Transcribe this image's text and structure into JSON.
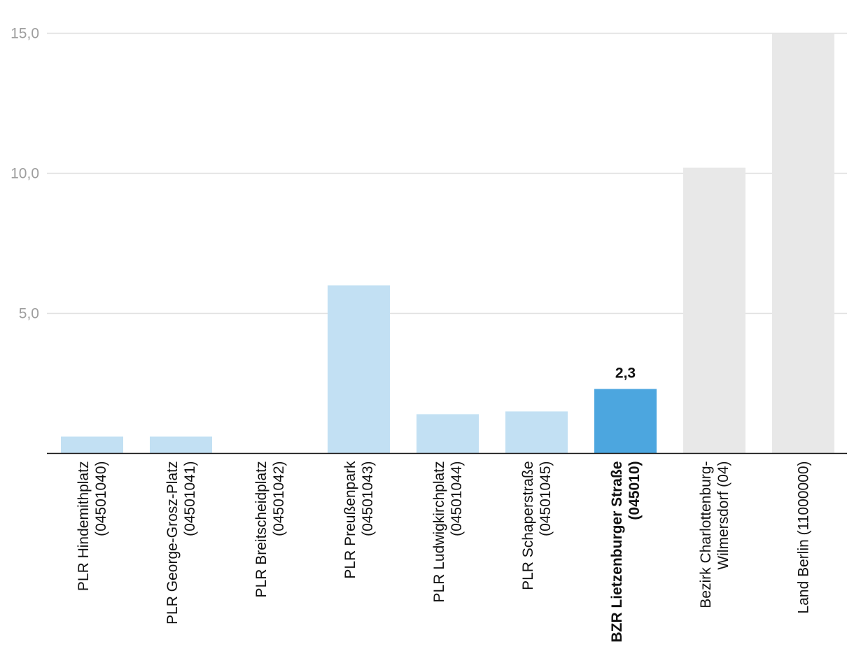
{
  "chart_data": {
    "type": "bar",
    "categories": [
      [
        "PLR Hindemithplatz",
        "(04501040)"
      ],
      [
        "PLR George-Grosz-Platz",
        "(04501041)"
      ],
      [
        "PLR Breitscheidplatz",
        "(04501042)"
      ],
      [
        "PLR Preußenpark",
        "(04501043)"
      ],
      [
        "PLR Ludwigkirchplatz",
        "(04501044)"
      ],
      [
        "PLR Schaperstraße",
        "(04501045)"
      ],
      [
        "BZR Lietzenburger Straße",
        "(045010)"
      ],
      [
        "Bezirk Charlottenburg-",
        "Wilmersdorf (04)"
      ],
      [
        "Land Berlin (11000000)"
      ]
    ],
    "values": [
      0.6,
      0.6,
      0.0,
      6.0,
      1.4,
      1.5,
      2.3,
      10.2,
      15.0
    ],
    "bar_groups": [
      "plr",
      "plr",
      "plr",
      "plr",
      "plr",
      "plr",
      "bzr",
      "ref",
      "ref"
    ],
    "colors": {
      "plr": "#c2e0f3",
      "bzr": "#4ca6df",
      "ref": "#e8e8e8",
      "grid": "#e0e0e0",
      "axis": "#111111"
    },
    "highlight_index": 6,
    "data_labels": [
      {
        "index": 6,
        "text": "2,3"
      }
    ],
    "yticks": [
      {
        "value": 5,
        "label": "5,0"
      },
      {
        "value": 10,
        "label": "10,0"
      },
      {
        "value": 15,
        "label": "15,0"
      }
    ],
    "ylim": [
      0,
      15
    ],
    "grid": true,
    "title": "",
    "xlabel": "",
    "ylabel": ""
  }
}
